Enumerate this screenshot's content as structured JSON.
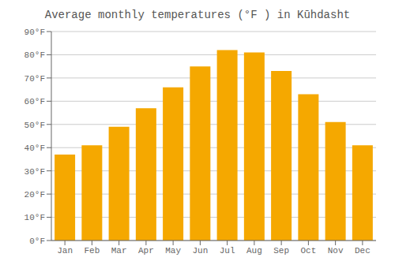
{
  "chart_data": {
    "type": "bar",
    "title": "Average monthly temperatures (°F ) in Kūhdasht",
    "categories": [
      "Jan",
      "Feb",
      "Mar",
      "Apr",
      "May",
      "Jun",
      "Jul",
      "Aug",
      "Sep",
      "Oct",
      "Nov",
      "Dec"
    ],
    "values": [
      37,
      41,
      49,
      57,
      66,
      75,
      82,
      81,
      73,
      63,
      51,
      41
    ],
    "color": "#F5A800",
    "ylim": [
      0,
      90
    ],
    "yticks": [
      {
        "value": 0,
        "label": "0°F"
      },
      {
        "value": 10,
        "label": "10°F"
      },
      {
        "value": 20,
        "label": "20°F"
      },
      {
        "value": 30,
        "label": "30°F"
      },
      {
        "value": 40,
        "label": "40°F"
      },
      {
        "value": 50,
        "label": "50°F"
      },
      {
        "value": 60,
        "label": "60°F"
      },
      {
        "value": 70,
        "label": "70°F"
      },
      {
        "value": 80,
        "label": "80°F"
      },
      {
        "value": 90,
        "label": "90°F"
      }
    ],
    "grid": true
  }
}
